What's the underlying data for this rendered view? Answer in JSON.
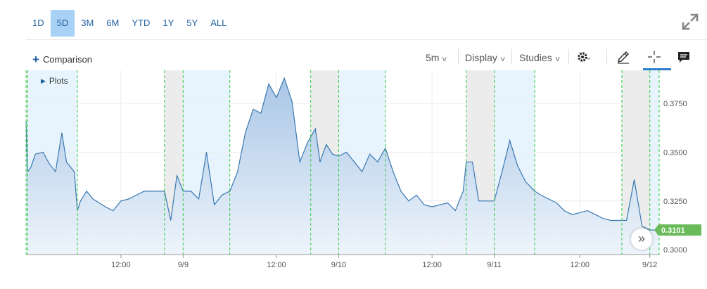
{
  "ranges": [
    {
      "label": "1D",
      "active": false
    },
    {
      "label": "5D",
      "active": true
    },
    {
      "label": "3M",
      "active": false
    },
    {
      "label": "6M",
      "active": false
    },
    {
      "label": "YTD",
      "active": false
    },
    {
      "label": "1Y",
      "active": false
    },
    {
      "label": "5Y",
      "active": false
    },
    {
      "label": "ALL",
      "active": false
    }
  ],
  "toolbar": {
    "comparison_label": "Comparison",
    "interval_label": "5m",
    "display_label": "Display",
    "studies_label": "Studies"
  },
  "plots_label": "Plots",
  "scroll_label": "»",
  "colors": {
    "accent": "#1f5f9e",
    "line": "#3a78b0",
    "area_top": "#a9c6e6",
    "area_bottom": "#eef4fb",
    "session_shade": "#e8f4fd",
    "closed_shade": "#ececec",
    "session_line": "#2ecc40",
    "price_badge": "#6aba5a"
  },
  "chart_data": {
    "type": "area",
    "title": "",
    "xlabel": "",
    "ylabel": "",
    "ylim": [
      0.2975,
      0.392
    ],
    "y_ticks": [
      "0.3750",
      "0.3500",
      "0.3250",
      "0.3000"
    ],
    "y_tick_values": [
      0.375,
      0.35,
      0.325,
      0.3
    ],
    "x_ticks": [
      "12:00",
      "9/9",
      "12:00",
      "9/10",
      "12:00",
      "9/11",
      "12:00",
      "9/12"
    ],
    "x_tick_positions": [
      1.1,
      1.5,
      2.1,
      2.5,
      3.1,
      3.5,
      4.05,
      4.5
    ],
    "x_range": [
      0.49,
      4.56
    ],
    "grid": true,
    "last_price": "0.3101",
    "last_value": 0.3101,
    "sessions": [
      {
        "pre": [
          0.49,
          0.5
        ],
        "reg": [
          0.5,
          0.82
        ],
        "post": [
          0.82,
          1.38
        ]
      },
      {
        "pre": [
          1.38,
          1.5
        ],
        "reg": [
          1.5,
          1.8
        ],
        "post": [
          1.8,
          2.32
        ]
      },
      {
        "pre": [
          2.32,
          2.5
        ],
        "reg": [
          2.5,
          2.8
        ],
        "post": [
          2.8,
          3.32
        ]
      },
      {
        "pre": [
          3.32,
          3.5
        ],
        "reg": [
          3.5,
          3.76
        ],
        "post": [
          3.76,
          4.32
        ]
      },
      {
        "pre": [
          4.32,
          4.5
        ],
        "reg": [
          4.5,
          4.56
        ],
        "post": null
      }
    ],
    "series": [
      {
        "x": [
          0.49,
          0.5,
          0.52,
          0.55,
          0.6,
          0.64,
          0.68,
          0.72,
          0.75,
          0.78,
          0.8,
          0.82,
          0.84,
          0.88,
          0.92,
          0.96,
          1.0,
          1.05,
          1.1,
          1.15,
          1.2,
          1.25,
          1.3,
          1.35,
          1.38,
          1.42,
          1.46,
          1.5,
          1.55,
          1.6,
          1.65,
          1.7,
          1.75,
          1.8,
          1.85,
          1.9,
          1.95,
          2.0,
          2.05,
          2.1,
          2.15,
          2.2,
          2.25,
          2.3,
          2.35,
          2.38,
          2.42,
          2.46,
          2.5,
          2.55,
          2.6,
          2.65,
          2.7,
          2.75,
          2.8,
          2.85,
          2.9,
          2.95,
          3.0,
          3.05,
          3.1,
          3.15,
          3.2,
          3.25,
          3.3,
          3.32,
          3.36,
          3.4,
          3.45,
          3.5,
          3.55,
          3.6,
          3.65,
          3.7,
          3.76,
          3.8,
          3.85,
          3.9,
          3.95,
          4.0,
          4.05,
          4.1,
          4.15,
          4.2,
          4.25,
          4.3,
          4.35,
          4.4,
          4.45,
          4.5,
          4.53,
          4.56
        ],
        "y": [
          0.366,
          0.34,
          0.342,
          0.349,
          0.35,
          0.344,
          0.34,
          0.36,
          0.345,
          0.342,
          0.34,
          0.32,
          0.325,
          0.33,
          0.326,
          0.324,
          0.322,
          0.32,
          0.325,
          0.326,
          0.328,
          0.33,
          0.33,
          0.33,
          0.33,
          0.315,
          0.338,
          0.33,
          0.33,
          0.326,
          0.35,
          0.323,
          0.328,
          0.33,
          0.34,
          0.36,
          0.372,
          0.37,
          0.385,
          0.378,
          0.388,
          0.376,
          0.345,
          0.355,
          0.362,
          0.345,
          0.354,
          0.349,
          0.348,
          0.35,
          0.345,
          0.34,
          0.349,
          0.345,
          0.352,
          0.34,
          0.33,
          0.325,
          0.328,
          0.323,
          0.322,
          0.323,
          0.324,
          0.32,
          0.33,
          0.345,
          0.345,
          0.325,
          0.325,
          0.325,
          0.34,
          0.356,
          0.343,
          0.335,
          0.33,
          0.328,
          0.326,
          0.324,
          0.32,
          0.318,
          0.319,
          0.32,
          0.318,
          0.316,
          0.315,
          0.315,
          0.315,
          0.336,
          0.312,
          0.3101,
          0.3101,
          0.3101
        ]
      }
    ]
  }
}
